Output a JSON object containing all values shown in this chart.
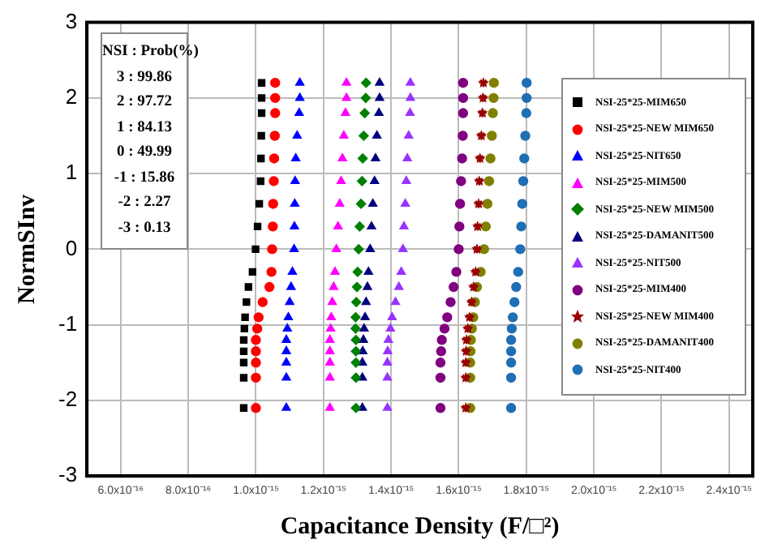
{
  "chart_data": {
    "type": "scatter",
    "xlabel": "Capacitance Density (F/□²)",
    "ylabel": "NormSInv",
    "xlim": [
      5e-16,
      2.47e-15
    ],
    "ylim": [
      -3,
      3
    ],
    "xticks": [
      {
        "value": 6e-16,
        "label": "6.0x10⁻¹⁶"
      },
      {
        "value": 8e-16,
        "label": "8.0x10⁻¹⁶"
      },
      {
        "value": 1e-15,
        "label": "1.0x10⁻¹⁵"
      },
      {
        "value": 1.2e-15,
        "label": "1.2x10⁻¹⁵"
      },
      {
        "value": 1.4e-15,
        "label": "1.4x10⁻¹⁵"
      },
      {
        "value": 1.6e-15,
        "label": "1.6x10⁻¹⁵"
      },
      {
        "value": 1.8e-15,
        "label": "1.8x10⁻¹⁵"
      },
      {
        "value": 2e-15,
        "label": "2.0x10⁻¹⁵"
      },
      {
        "value": 2.2e-15,
        "label": "2.2x10⁻¹⁵"
      },
      {
        "value": 2.4e-15,
        "label": "2.4x10⁻¹⁵"
      }
    ],
    "yticks": [
      -3,
      -2,
      -1,
      0,
      1,
      2,
      3
    ],
    "grid": true,
    "legend": "right",
    "annotations": [
      "NSI : Prob(%)",
      "3 : 99.86",
      "2 : 97.72",
      "1 : 84.13",
      "0 : 49.99",
      "-1 : 15.86",
      "-2 : 2.27",
      "-3 : 0.13"
    ],
    "series": [
      {
        "name": "NSI-25*25-MIM650",
        "color": "#000000",
        "marker": "square",
        "x": [
          1.017e-15,
          1.017e-15,
          1.017e-15,
          1.016e-15,
          1.015e-15,
          1.014e-15,
          1.01e-15,
          1.005e-15,
          9.99e-16,
          9.9e-16,
          9.78e-16,
          9.72e-16,
          9.68e-16,
          9.66e-16,
          9.64e-16,
          9.64e-16,
          9.64e-16,
          9.64e-16,
          9.64e-16
        ],
        "values": [
          2.2,
          2.0,
          1.8,
          1.5,
          1.2,
          0.9,
          0.6,
          0.3,
          0,
          -0.3,
          -0.5,
          -0.7,
          -0.9,
          -1.05,
          -1.2,
          -1.35,
          -1.5,
          -1.7,
          -2.1
        ]
      },
      {
        "name": "NSI-25*25-NEW MIM650",
        "color": "#ff0000",
        "marker": "circle",
        "x": [
          1.057e-15,
          1.057e-15,
          1.057e-15,
          1.056e-15,
          1.054e-15,
          1.053e-15,
          1.051e-15,
          1.05e-15,
          1.048e-15,
          1.046e-15,
          1.04e-15,
          1.02e-15,
          1.008e-15,
          1.004e-15,
          1e-15,
          1e-15,
          1e-15,
          1e-15,
          1e-15
        ],
        "values": [
          2.2,
          2.0,
          1.8,
          1.5,
          1.2,
          0.9,
          0.6,
          0.3,
          0,
          -0.3,
          -0.5,
          -0.7,
          -0.9,
          -1.05,
          -1.2,
          -1.35,
          -1.5,
          -1.7,
          -2.1
        ]
      },
      {
        "name": "NSI-25*25-NIT650",
        "color": "#0000ff",
        "marker": "triangle",
        "x": [
          1.13e-15,
          1.13e-15,
          1.128e-15,
          1.122e-15,
          1.118e-15,
          1.116e-15,
          1.115e-15,
          1.114e-15,
          1.113e-15,
          1.108e-15,
          1.104e-15,
          1.1e-15,
          1.096e-15,
          1.093e-15,
          1.09e-15,
          1.09e-15,
          1.09e-15,
          1.09e-15,
          1.09e-15
        ],
        "values": [
          2.2,
          2.0,
          1.8,
          1.5,
          1.2,
          0.9,
          0.6,
          0.3,
          0,
          -0.3,
          -0.5,
          -0.7,
          -0.9,
          -1.05,
          -1.2,
          -1.35,
          -1.5,
          -1.7,
          -2.1
        ]
      },
      {
        "name": "NSI-25*25-MIM500",
        "color": "#ff00ff",
        "marker": "triangle",
        "x": [
          1.268e-15,
          1.268e-15,
          1.265e-15,
          1.26e-15,
          1.256e-15,
          1.252e-15,
          1.248e-15,
          1.243e-15,
          1.238e-15,
          1.234e-15,
          1.23e-15,
          1.226e-15,
          1.223e-15,
          1.221e-15,
          1.219e-15,
          1.219e-15,
          1.219e-15,
          1.219e-15,
          1.219e-15
        ],
        "values": [
          2.2,
          2.0,
          1.8,
          1.5,
          1.2,
          0.9,
          0.6,
          0.3,
          0,
          -0.3,
          -0.5,
          -0.7,
          -0.9,
          -1.05,
          -1.2,
          -1.35,
          -1.5,
          -1.7,
          -2.1
        ]
      },
      {
        "name": "NSI-25*25-NEW MIM500",
        "color": "#008000",
        "marker": "diamond",
        "x": [
          1.326e-15,
          1.325e-15,
          1.322e-15,
          1.319e-15,
          1.316e-15,
          1.314e-15,
          1.311e-15,
          1.307e-15,
          1.304e-15,
          1.301e-15,
          1.299e-15,
          1.297e-15,
          1.295e-15,
          1.295e-15,
          1.296e-15,
          1.296e-15,
          1.296e-15,
          1.296e-15,
          1.296e-15
        ],
        "values": [
          2.2,
          2.0,
          1.8,
          1.5,
          1.2,
          0.9,
          0.6,
          0.3,
          0,
          -0.3,
          -0.5,
          -0.7,
          -0.9,
          -1.05,
          -1.2,
          -1.35,
          -1.5,
          -1.7,
          -2.1
        ]
      },
      {
        "name": "NSI-25*25-DAMANIT500",
        "color": "#000080",
        "marker": "triangle",
        "x": [
          1.366e-15,
          1.366e-15,
          1.364e-15,
          1.358e-15,
          1.354e-15,
          1.351e-15,
          1.346e-15,
          1.342e-15,
          1.338e-15,
          1.333e-15,
          1.33e-15,
          1.326e-15,
          1.323e-15,
          1.32e-15,
          1.318e-15,
          1.316e-15,
          1.315e-15,
          1.315e-15,
          1.315e-15
        ],
        "values": [
          2.2,
          2.0,
          1.8,
          1.5,
          1.2,
          0.9,
          0.6,
          0.3,
          0,
          -0.3,
          -0.5,
          -0.7,
          -0.9,
          -1.05,
          -1.2,
          -1.35,
          -1.5,
          -1.7,
          -2.1
        ]
      },
      {
        "name": "NSI-25*25-NIT500",
        "color": "#9933ff",
        "marker": "triangle",
        "x": [
          1.457e-15,
          1.457e-15,
          1.456e-15,
          1.452e-15,
          1.448e-15,
          1.445e-15,
          1.442e-15,
          1.438e-15,
          1.435e-15,
          1.43e-15,
          1.423e-15,
          1.413e-15,
          1.403e-15,
          1.398e-15,
          1.392e-15,
          1.39e-15,
          1.389e-15,
          1.389e-15,
          1.389e-15
        ],
        "values": [
          2.2,
          2.0,
          1.8,
          1.5,
          1.2,
          0.9,
          0.6,
          0.3,
          0,
          -0.3,
          -0.5,
          -0.7,
          -0.9,
          -1.05,
          -1.2,
          -1.35,
          -1.5,
          -1.7,
          -2.1
        ]
      },
      {
        "name": "NSI-25*25-MIM400",
        "color": "#800080",
        "marker": "circle",
        "x": [
          1.613e-15,
          1.613e-15,
          1.613e-15,
          1.612e-15,
          1.61e-15,
          1.607e-15,
          1.604e-15,
          1.602e-15,
          1.6e-15,
          1.593e-15,
          1.585e-15,
          1.576e-15,
          1.566e-15,
          1.558e-15,
          1.55e-15,
          1.548e-15,
          1.546e-15,
          1.546e-15,
          1.546e-15
        ],
        "values": [
          2.2,
          2.0,
          1.8,
          1.5,
          1.2,
          0.9,
          0.6,
          0.3,
          0,
          -0.3,
          -0.5,
          -0.7,
          -0.9,
          -1.05,
          -1.2,
          -1.35,
          -1.5,
          -1.7,
          -2.1
        ]
      },
      {
        "name": "NSI-25*25-NEW MIM400",
        "color": "#990000",
        "marker": "star",
        "x": [
          1.673e-15,
          1.672e-15,
          1.67e-15,
          1.667e-15,
          1.663e-15,
          1.661e-15,
          1.659e-15,
          1.656e-15,
          1.654e-15,
          1.65e-15,
          1.644e-15,
          1.638e-15,
          1.632e-15,
          1.627e-15,
          1.623e-15,
          1.622e-15,
          1.621e-15,
          1.621e-15,
          1.621e-15
        ],
        "values": [
          2.2,
          2.0,
          1.8,
          1.5,
          1.2,
          0.9,
          0.6,
          0.3,
          0,
          -0.3,
          -0.5,
          -0.7,
          -0.9,
          -1.05,
          -1.2,
          -1.35,
          -1.5,
          -1.7,
          -2.1
        ]
      },
      {
        "name": "NSI-25*25-DAMANIT400",
        "color": "#808000",
        "marker": "circle",
        "x": [
          1.704e-15,
          1.703e-15,
          1.701e-15,
          1.698e-15,
          1.694e-15,
          1.69e-15,
          1.685e-15,
          1.68e-15,
          1.675e-15,
          1.665e-15,
          1.654e-15,
          1.648e-15,
          1.643e-15,
          1.639e-15,
          1.636e-15,
          1.635e-15,
          1.634e-15,
          1.634e-15,
          1.634e-15
        ],
        "values": [
          2.2,
          2.0,
          1.8,
          1.5,
          1.2,
          0.9,
          0.6,
          0.3,
          0,
          -0.3,
          -0.5,
          -0.7,
          -0.9,
          -1.05,
          -1.2,
          -1.35,
          -1.5,
          -1.7,
          -2.1
        ]
      },
      {
        "name": "NSI-25*25-NIT400",
        "color": "#1f6fb4",
        "marker": "circle",
        "x": [
          1.801e-15,
          1.801e-15,
          1.8e-15,
          1.797e-15,
          1.794e-15,
          1.791e-15,
          1.788e-15,
          1.785e-15,
          1.782e-15,
          1.776e-15,
          1.77e-15,
          1.765e-15,
          1.76e-15,
          1.757e-15,
          1.755e-15,
          1.755e-15,
          1.755e-15,
          1.755e-15,
          1.755e-15
        ],
        "values": [
          2.2,
          2.0,
          1.8,
          1.5,
          1.2,
          0.9,
          0.6,
          0.3,
          0,
          -0.3,
          -0.5,
          -0.7,
          -0.9,
          -1.05,
          -1.2,
          -1.35,
          -1.5,
          -1.7,
          -2.1
        ]
      }
    ]
  }
}
